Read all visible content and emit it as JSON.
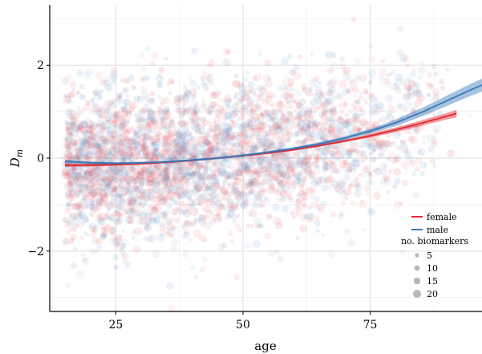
{
  "chart_data": {
    "type": "scatter",
    "title": "",
    "xlabel": "age",
    "ylabel_base": "D",
    "ylabel_sub": "m",
    "xlim": [
      12,
      97
    ],
    "ylim": [
      -3.3,
      3.3
    ],
    "xticks": [
      25,
      50,
      75
    ],
    "yticks": [
      -2,
      0,
      2
    ],
    "xtick_labels": [
      "25",
      "50",
      "75"
    ],
    "ytick_labels": [
      "−2",
      "0",
      "2"
    ],
    "grid": true,
    "legend_position": "bottom-right",
    "series": [
      {
        "name": "female",
        "color": "#e0272f",
        "point_color": "#e8555c",
        "age_range": [
          15,
          92
        ],
        "fit": {
          "x": [
            15,
            20,
            25,
            30,
            35,
            40,
            45,
            50,
            55,
            60,
            65,
            70,
            75,
            80,
            85,
            90,
            92
          ],
          "y": [
            -0.15,
            -0.15,
            -0.14,
            -0.12,
            -0.09,
            -0.05,
            0.0,
            0.05,
            0.11,
            0.18,
            0.27,
            0.37,
            0.48,
            0.61,
            0.75,
            0.9,
            0.96
          ],
          "ci_halfwidth": [
            0.04,
            0.03,
            0.025,
            0.02,
            0.02,
            0.02,
            0.02,
            0.02,
            0.02,
            0.02,
            0.025,
            0.03,
            0.04,
            0.05,
            0.06,
            0.07,
            0.08
          ]
        }
      },
      {
        "name": "male",
        "color": "#3a78b8",
        "point_color": "#5d8ec4",
        "age_range": [
          15,
          97
        ],
        "fit": {
          "x": [
            15,
            20,
            25,
            30,
            35,
            40,
            45,
            50,
            55,
            60,
            65,
            70,
            75,
            80,
            85,
            90,
            95,
            97
          ],
          "y": [
            -0.07,
            -0.1,
            -0.11,
            -0.1,
            -0.08,
            -0.04,
            0.0,
            0.06,
            0.13,
            0.21,
            0.31,
            0.43,
            0.58,
            0.76,
            0.98,
            1.23,
            1.48,
            1.57
          ],
          "ci_halfwidth": [
            0.04,
            0.03,
            0.025,
            0.02,
            0.02,
            0.02,
            0.02,
            0.02,
            0.02,
            0.025,
            0.03,
            0.04,
            0.05,
            0.07,
            0.09,
            0.11,
            0.13,
            0.14
          ]
        }
      }
    ],
    "size_legend": {
      "title": "no. biomarkers",
      "values": [
        5,
        10,
        15,
        20
      ]
    }
  }
}
